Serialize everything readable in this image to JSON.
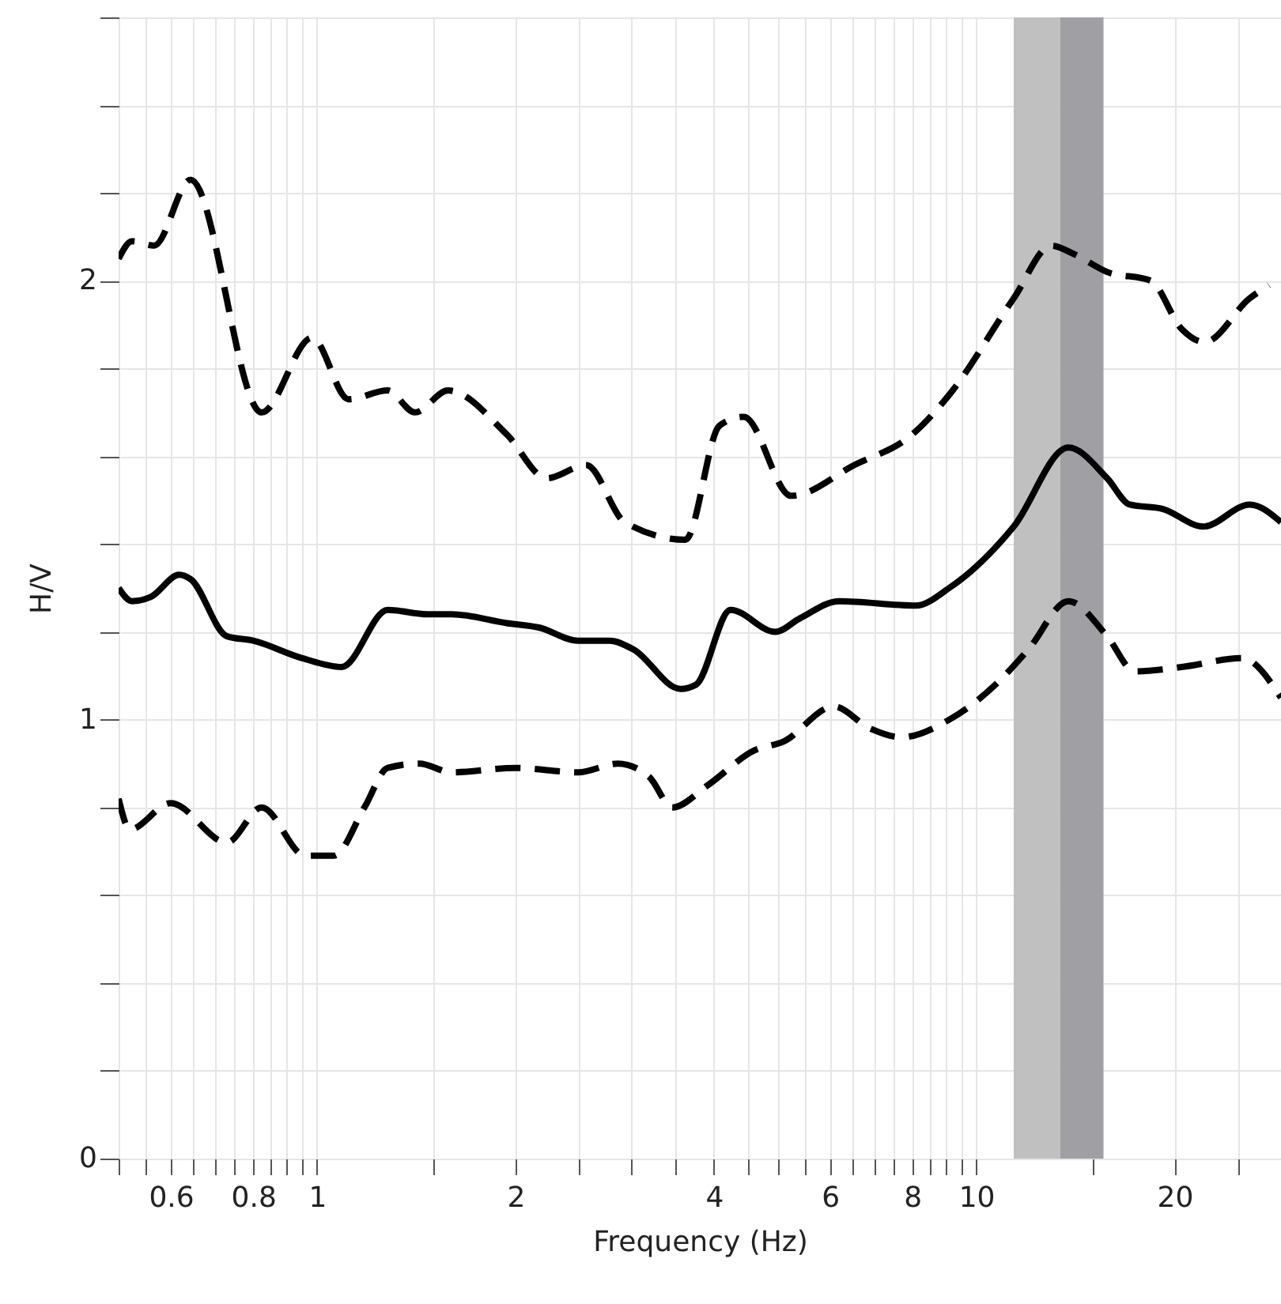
{
  "chart_data": {
    "type": "line",
    "xlabel": "Frequency (Hz)",
    "ylabel": "H/V",
    "log": "x",
    "grid": true,
    "xlim": [
      0.5,
      29
    ],
    "ylim": [
      0,
      2.6
    ],
    "xticks": [
      {
        "value": 0.5,
        "label": null
      },
      {
        "value": 0.55,
        "label": null
      },
      0.6,
      {
        "value": 0.65,
        "label": null
      },
      {
        "value": 0.7,
        "label": null
      },
      {
        "value": 0.75,
        "label": null
      },
      0.8,
      {
        "value": 0.85,
        "label": null
      },
      {
        "value": 0.9,
        "label": null
      },
      {
        "value": 0.95,
        "label": null
      },
      1,
      {
        "value": 1.5,
        "label": null
      },
      2,
      {
        "value": 2.5,
        "label": null
      },
      {
        "value": 3,
        "label": null
      },
      {
        "value": 3.5,
        "label": null
      },
      4,
      {
        "value": 4.5,
        "label": null
      },
      {
        "value": 5,
        "label": null
      },
      {
        "value": 5.5,
        "label": null
      },
      6,
      {
        "value": 6.5,
        "label": null
      },
      {
        "value": 7,
        "label": null
      },
      {
        "value": 7.5,
        "label": null
      },
      8,
      {
        "value": 8.5,
        "label": null
      },
      {
        "value": 9,
        "label": null
      },
      {
        "value": 9.5,
        "label": null
      },
      10,
      {
        "value": 15,
        "label": null
      },
      20,
      {
        "value": 25,
        "label": null
      }
    ],
    "yticks": [
      0,
      {
        "value": 0.2,
        "label": null
      },
      {
        "value": 0.4,
        "label": null
      },
      {
        "value": 0.6,
        "label": null
      },
      {
        "value": 0.8,
        "label": null
      },
      1,
      {
        "value": 1.2,
        "label": null
      },
      {
        "value": 1.4,
        "label": null
      },
      {
        "value": 1.6,
        "label": null
      },
      {
        "value": 1.8,
        "label": null
      },
      2,
      {
        "value": 2.2,
        "label": null
      },
      {
        "value": 2.4,
        "label": null
      },
      {
        "value": 2.6,
        "label": null
      }
    ],
    "bands": [
      {
        "axis": "x",
        "from": 11.4,
        "to": 13.4,
        "color": "#c0c0c0"
      },
      {
        "axis": "x",
        "from": 13.4,
        "to": 15.6,
        "color": "#a0a0a4"
      }
    ],
    "series": [
      {
        "color": "#000000",
        "line_style": "dashed",
        "x": [
          0.5,
          0.524,
          0.566,
          0.643,
          0.824,
          0.983,
          1.117,
          1.28,
          1.408,
          1.58,
          1.94,
          2.23,
          2.56,
          2.93,
          3.62,
          4.08,
          4.44,
          5.24,
          6.53,
          8.0,
          9.1,
          11.4,
          13.0,
          14.1,
          15.8,
          18.4,
          20.5,
          22.2,
          26.0,
          27.8
        ],
        "values": [
          2.05,
          2.09,
          2.08,
          2.23,
          1.7,
          1.87,
          1.73,
          1.75,
          1.7,
          1.75,
          1.65,
          1.55,
          1.58,
          1.45,
          1.41,
          1.67,
          1.69,
          1.51,
          1.58,
          1.65,
          1.74,
          1.96,
          2.08,
          2.06,
          2.02,
          2.0,
          1.89,
          1.86,
          1.96,
          1.99
        ]
      },
      {
        "color": "#000000",
        "line_style": "solid",
        "x": [
          0.5,
          0.524,
          0.56,
          0.618,
          0.643,
          0.73,
          0.8,
          0.95,
          1.09,
          1.28,
          1.47,
          1.6,
          1.94,
          2.17,
          2.49,
          2.78,
          3.02,
          3.56,
          3.76,
          4.24,
          4.96,
          5.39,
          6.2,
          8.1,
          9.1,
          11.4,
          13.8,
          15.8,
          17.1,
          19.2,
          22.1,
          26.0,
          29.0
        ],
        "values": [
          1.3,
          1.27,
          1.28,
          1.33,
          1.32,
          1.19,
          1.18,
          1.14,
          1.12,
          1.25,
          1.24,
          1.24,
          1.22,
          1.21,
          1.18,
          1.18,
          1.16,
          1.07,
          1.08,
          1.25,
          1.2,
          1.23,
          1.27,
          1.26,
          1.3,
          1.44,
          1.62,
          1.55,
          1.49,
          1.48,
          1.44,
          1.49,
          1.45
        ]
      },
      {
        "color": "#000000",
        "line_style": "dashed",
        "x": [
          0.5,
          0.52,
          0.6,
          0.73,
          0.824,
          0.96,
          1.06,
          1.18,
          1.28,
          1.43,
          1.6,
          2.0,
          2.49,
          2.86,
          3.19,
          3.46,
          3.91,
          4.61,
          5.1,
          6.08,
          6.9,
          7.7,
          9.1,
          10.7,
          12.0,
          13.8,
          15.8,
          17.4,
          20.5,
          25.3,
          29.0
        ],
        "values": [
          0.82,
          0.75,
          0.81,
          0.72,
          0.8,
          0.69,
          0.69,
          0.8,
          0.89,
          0.9,
          0.88,
          0.89,
          0.88,
          0.9,
          0.87,
          0.8,
          0.85,
          0.93,
          0.95,
          1.03,
          0.98,
          0.96,
          1.0,
          1.08,
          1.16,
          1.27,
          1.19,
          1.11,
          1.12,
          1.14,
          1.05
        ]
      }
    ]
  }
}
